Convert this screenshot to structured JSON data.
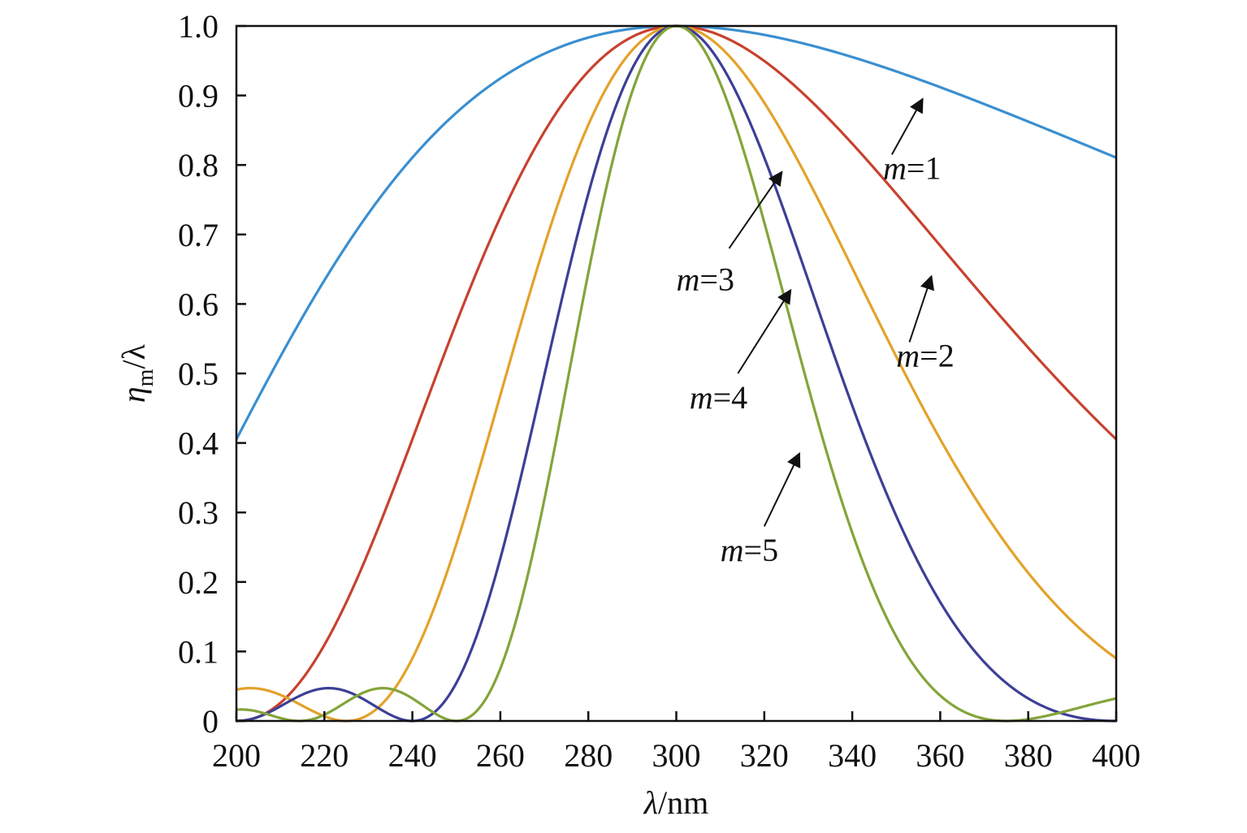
{
  "chart_data": {
    "type": "line",
    "xlabel": {
      "symbol": "λ",
      "unit": "/nm"
    },
    "ylabel": {
      "symbol": "η",
      "subscript": "m",
      "rest": "/λ"
    },
    "xlim": [
      200,
      400
    ],
    "ylim": [
      0,
      1.0
    ],
    "x_ticks": [
      200,
      220,
      240,
      260,
      280,
      300,
      320,
      340,
      360,
      380,
      400
    ],
    "y_ticks": [
      0,
      0.1,
      0.2,
      0.3,
      0.4,
      0.5,
      0.6,
      0.7,
      0.8,
      0.9,
      1.0
    ],
    "y_tick_labels": [
      "0",
      "0.1",
      "0.2",
      "0.3",
      "0.4",
      "0.5",
      "0.6",
      "0.7",
      "0.8",
      "0.9",
      "1.0"
    ],
    "grid": false,
    "blaze_wavelength_nm": 300,
    "series": [
      {
        "m": 1,
        "color": "#3a8fd0"
      },
      {
        "m": 2,
        "color": "#c8412e"
      },
      {
        "m": 3,
        "color": "#e3a22a"
      },
      {
        "m": 4,
        "color": "#3d3f96"
      },
      {
        "m": 5,
        "color": "#84a43a"
      }
    ],
    "annotations": [
      {
        "m": 1,
        "prefix": "m",
        "suffix": "=1",
        "text_at": [
          347,
          0.78
        ],
        "arrow_from": [
          349,
          0.815
        ],
        "arrow_to": [
          356,
          0.895
        ]
      },
      {
        "m": 2,
        "prefix": "m",
        "suffix": "=2",
        "text_at": [
          350,
          0.51
        ],
        "arrow_from": [
          353,
          0.545
        ],
        "arrow_to": [
          358,
          0.64
        ]
      },
      {
        "m": 3,
        "prefix": "m",
        "suffix": "=3",
        "text_at": [
          300,
          0.62
        ],
        "arrow_from": [
          312,
          0.68
        ],
        "arrow_to": [
          324,
          0.79
        ]
      },
      {
        "m": 4,
        "prefix": "m",
        "suffix": "=4",
        "text_at": [
          303,
          0.45
        ],
        "arrow_from": [
          314,
          0.5
        ],
        "arrow_to": [
          326,
          0.62
        ]
      },
      {
        "m": 5,
        "prefix": "m",
        "suffix": "=5",
        "text_at": [
          310,
          0.23
        ],
        "arrow_from": [
          320,
          0.28
        ],
        "arrow_to": [
          328,
          0.385
        ]
      }
    ]
  }
}
